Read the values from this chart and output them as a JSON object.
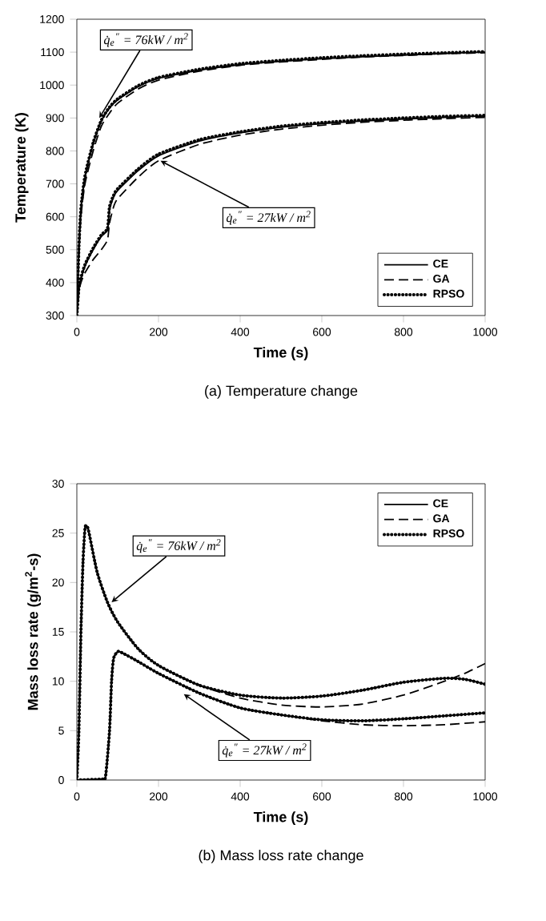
{
  "chart_data": [
    {
      "type": "line",
      "xlabel": "Time (s)",
      "ylabel": "Temperature (K)",
      "xlim": [
        0,
        1000
      ],
      "ylim": [
        300,
        1200
      ],
      "xticks": [
        0,
        200,
        400,
        600,
        800,
        1000
      ],
      "yticks": [
        300,
        400,
        500,
        600,
        700,
        800,
        900,
        1000,
        1100,
        1200
      ],
      "legend": "bottom right",
      "series": [
        {
          "name": "CE",
          "color": "#000000",
          "line_style": "solid",
          "x": [
            0,
            5,
            10,
            20,
            40,
            60,
            80,
            100,
            150,
            200,
            300,
            400,
            500,
            600,
            700,
            800,
            900,
            1000
          ],
          "values": [
            300,
            500,
            620,
            720,
            820,
            890,
            930,
            955,
            995,
            1020,
            1045,
            1062,
            1072,
            1080,
            1086,
            1091,
            1096,
            1100
          ]
        },
        {
          "name": "GA",
          "color": "#000000",
          "line_style": "dashed",
          "x": [
            0,
            5,
            10,
            20,
            40,
            60,
            80,
            100,
            150,
            200,
            300,
            400,
            500,
            600,
            700,
            800,
            900,
            1000
          ],
          "values": [
            300,
            480,
            600,
            700,
            800,
            875,
            915,
            945,
            988,
            1015,
            1042,
            1060,
            1070,
            1078,
            1085,
            1090,
            1095,
            1098
          ]
        },
        {
          "name": "RPSO",
          "color": "#000000",
          "line_style": "dotted",
          "x": [
            0,
            5,
            10,
            20,
            40,
            60,
            80,
            100,
            150,
            200,
            300,
            400,
            500,
            600,
            700,
            800,
            900,
            1000
          ],
          "values": [
            300,
            505,
            625,
            725,
            825,
            893,
            933,
            958,
            998,
            1023,
            1048,
            1065,
            1075,
            1083,
            1089,
            1094,
            1098,
            1102
          ]
        },
        {
          "color": "#000000",
          "line_style": "solid",
          "x": [
            0,
            5,
            10,
            20,
            40,
            60,
            75,
            80,
            90,
            100,
            150,
            200,
            300,
            400,
            500,
            600,
            700,
            800,
            900,
            1000
          ],
          "values": [
            300,
            380,
            410,
            450,
            500,
            540,
            560,
            620,
            660,
            680,
            740,
            785,
            830,
            855,
            872,
            883,
            891,
            897,
            902,
            906
          ]
        },
        {
          "color": "#000000",
          "line_style": "dashed",
          "x": [
            0,
            5,
            10,
            20,
            40,
            60,
            75,
            80,
            90,
            100,
            150,
            200,
            300,
            400,
            500,
            600,
            700,
            800,
            900,
            1000
          ],
          "values": [
            300,
            370,
            400,
            430,
            470,
            500,
            530,
            580,
            630,
            655,
            720,
            770,
            820,
            848,
            866,
            878,
            887,
            893,
            898,
            902
          ]
        },
        {
          "color": "#000000",
          "line_style": "dotted",
          "x": [
            0,
            5,
            10,
            20,
            40,
            60,
            75,
            80,
            90,
            100,
            150,
            200,
            300,
            400,
            500,
            600,
            700,
            800,
            900,
            1000
          ],
          "values": [
            300,
            385,
            415,
            455,
            505,
            545,
            565,
            630,
            665,
            685,
            745,
            790,
            834,
            858,
            875,
            886,
            894,
            900,
            905,
            908
          ]
        }
      ],
      "annotations": [
        {
          "text": "q̇$_{e}$$^{″}$ = 76kW / m$^{2}$",
          "x": 55,
          "y": 900
        },
        {
          "text": "q̇$_{e}$$^{″}$ = 27kW / m$^{2}$",
          "x": 205,
          "y": 770
        },
        "(a)  Temperature  change"
      ]
    },
    {
      "type": "line",
      "xlabel": "Time (s)",
      "ylabel": "Mass loss rate (g/m$^{2}$-s)",
      "xlim": [
        0,
        1000
      ],
      "ylim": [
        0,
        30
      ],
      "xticks": [
        0,
        200,
        400,
        600,
        800,
        1000
      ],
      "yticks": [
        0,
        5,
        10,
        15,
        20,
        25,
        30
      ],
      "legend": "top right",
      "series": [
        {
          "name": "CE",
          "color": "#000000",
          "line_style": "solid",
          "x": [
            0,
            5,
            10,
            15,
            20,
            25,
            30,
            50,
            75,
            100,
            150,
            200,
            300,
            400,
            500,
            600,
            700,
            800,
            900,
            950,
            1000
          ],
          "values": [
            0,
            5,
            15,
            22,
            25.5,
            25.7,
            25,
            21,
            18,
            16,
            13.3,
            11.6,
            9.6,
            8.6,
            8.3,
            8.5,
            9.1,
            9.9,
            10.3,
            10.2,
            9.7
          ]
        },
        {
          "name": "GA",
          "color": "#000000",
          "line_style": "dashed",
          "x": [
            0,
            5,
            10,
            15,
            20,
            25,
            30,
            50,
            75,
            100,
            150,
            200,
            300,
            400,
            500,
            600,
            700,
            800,
            900,
            950,
            1000
          ],
          "values": [
            0,
            5,
            15,
            22,
            25.5,
            25.7,
            25,
            21,
            18,
            16,
            13.3,
            11.6,
            9.6,
            8.3,
            7.6,
            7.4,
            7.7,
            8.6,
            10.0,
            10.8,
            11.8
          ]
        },
        {
          "name": "RPSO",
          "color": "#000000",
          "line_style": "dotted",
          "x": [
            0,
            5,
            10,
            15,
            20,
            25,
            30,
            50,
            75,
            100,
            150,
            200,
            300,
            400,
            500,
            600,
            700,
            800,
            900,
            950,
            1000
          ],
          "values": [
            0,
            5,
            15,
            22,
            25.5,
            25.7,
            25,
            21,
            18,
            16,
            13.3,
            11.6,
            9.6,
            8.6,
            8.3,
            8.5,
            9.1,
            9.9,
            10.3,
            10.2,
            9.7
          ]
        },
        {
          "color": "#000000",
          "line_style": "solid",
          "x": [
            0,
            60,
            70,
            80,
            85,
            90,
            100,
            110,
            150,
            200,
            300,
            400,
            500,
            600,
            700,
            800,
            900,
            1000
          ],
          "values": [
            0,
            0.1,
            0.3,
            5,
            10,
            12.3,
            13,
            12.9,
            12,
            10.8,
            8.8,
            7.3,
            6.6,
            6.1,
            6.0,
            6.2,
            6.5,
            6.8
          ]
        },
        {
          "color": "#000000",
          "line_style": "dashed",
          "x": [
            0,
            60,
            70,
            80,
            85,
            90,
            100,
            110,
            150,
            200,
            300,
            400,
            500,
            600,
            700,
            800,
            900,
            1000
          ],
          "values": [
            0,
            0.1,
            0.3,
            5,
            10,
            12.3,
            13,
            12.9,
            12,
            10.8,
            8.8,
            7.3,
            6.6,
            6.0,
            5.6,
            5.5,
            5.6,
            5.9
          ]
        },
        {
          "color": "#000000",
          "line_style": "dotted",
          "x": [
            0,
            60,
            70,
            80,
            85,
            90,
            100,
            110,
            150,
            200,
            300,
            400,
            500,
            600,
            700,
            800,
            900,
            1000
          ],
          "values": [
            0,
            0.1,
            0.3,
            5,
            10,
            12.3,
            13,
            12.9,
            12,
            10.8,
            8.8,
            7.3,
            6.6,
            6.1,
            6.0,
            6.2,
            6.5,
            6.8
          ]
        }
      ],
      "annotations": [
        {
          "text": "q̇$_{e}$$^{″}$ = 76kW / m$^{2}$",
          "x": 85,
          "y": 18
        },
        {
          "text": "q̇$_{e}$$^{″}$ = 27kW / m$^{2}$",
          "x": 262,
          "y": 8.7
        },
        "(b)  Mass  loss  rate  change"
      ]
    }
  ]
}
